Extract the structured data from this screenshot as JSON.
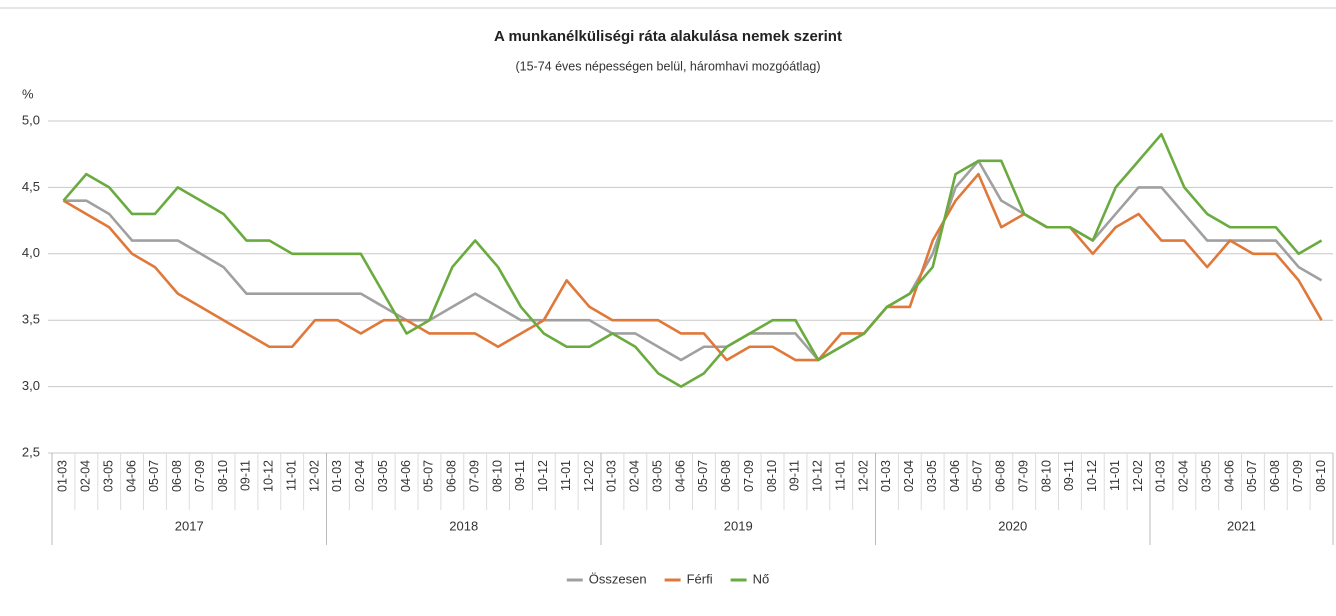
{
  "chart_data": {
    "type": "line",
    "title": "A munkanélküliségi ráta alakulása nemek szerint",
    "subtitle": "(15-74 éves népességen belül, háromhavi mozgóátlag)",
    "y_label": "%",
    "groups": [
      {
        "name": "2017",
        "categories": [
          "01-03",
          "02-04",
          "03-05",
          "04-06",
          "05-07",
          "06-08",
          "07-09",
          "08-10",
          "09-11",
          "10-12",
          "11-01",
          "12-02"
        ]
      },
      {
        "name": "2018",
        "categories": [
          "01-03",
          "02-04",
          "03-05",
          "04-06",
          "05-07",
          "06-08",
          "07-09",
          "08-10",
          "09-11",
          "10-12",
          "11-01",
          "12-02"
        ]
      },
      {
        "name": "2019",
        "categories": [
          "01-03",
          "02-04",
          "03-05",
          "04-06",
          "05-07",
          "06-08",
          "07-09",
          "08-10",
          "09-11",
          "10-12",
          "11-01",
          "12-02"
        ]
      },
      {
        "name": "2020",
        "categories": [
          "01-03",
          "02-04",
          "03-05",
          "04-06",
          "05-07",
          "06-08",
          "07-09",
          "08-10",
          "09-11",
          "10-12",
          "11-01",
          "12-02"
        ]
      },
      {
        "name": "2021",
        "categories": [
          "01-03",
          "02-04",
          "03-05",
          "04-06",
          "05-07",
          "06-08",
          "07-09",
          "08-10"
        ]
      }
    ],
    "series": [
      {
        "name": "Összesen",
        "color": "#a0a0a0",
        "values": [
          4.4,
          4.4,
          4.3,
          4.1,
          4.1,
          4.1,
          4.0,
          3.9,
          3.7,
          3.7,
          3.7,
          3.7,
          3.7,
          3.7,
          3.6,
          3.5,
          3.5,
          3.6,
          3.7,
          3.6,
          3.5,
          3.5,
          3.5,
          3.5,
          3.4,
          3.4,
          3.3,
          3.2,
          3.3,
          3.3,
          3.4,
          3.4,
          3.4,
          3.2,
          3.3,
          3.4,
          3.6,
          3.7,
          4.0,
          4.5,
          4.7,
          4.4,
          4.3,
          4.2,
          4.2,
          4.1,
          4.3,
          4.5,
          4.5,
          4.3,
          4.1,
          4.1,
          4.1,
          4.1,
          3.9,
          3.8
        ]
      },
      {
        "name": "Férfi",
        "color": "#e0783a",
        "values": [
          4.4,
          4.3,
          4.2,
          4.0,
          3.9,
          3.7,
          3.6,
          3.5,
          3.4,
          3.3,
          3.3,
          3.5,
          3.5,
          3.4,
          3.5,
          3.5,
          3.4,
          3.4,
          3.4,
          3.3,
          3.4,
          3.5,
          3.8,
          3.6,
          3.5,
          3.5,
          3.5,
          3.4,
          3.4,
          3.2,
          3.3,
          3.3,
          3.2,
          3.2,
          3.4,
          3.4,
          3.6,
          3.6,
          4.1,
          4.4,
          4.6,
          4.2,
          4.3,
          4.2,
          4.2,
          4.0,
          4.2,
          4.3,
          4.1,
          4.1,
          3.9,
          4.1,
          4.0,
          4.0,
          3.8,
          3.5
        ]
      },
      {
        "name": "Nő",
        "color": "#6aab3f",
        "values": [
          4.4,
          4.6,
          4.5,
          4.3,
          4.3,
          4.5,
          4.4,
          4.3,
          4.1,
          4.1,
          4.0,
          4.0,
          4.0,
          4.0,
          3.7,
          3.4,
          3.5,
          3.9,
          4.1,
          3.9,
          3.6,
          3.4,
          3.3,
          3.3,
          3.4,
          3.3,
          3.1,
          3.0,
          3.1,
          3.3,
          3.4,
          3.5,
          3.5,
          3.2,
          3.3,
          3.4,
          3.6,
          3.7,
          3.9,
          4.6,
          4.7,
          4.7,
          4.3,
          4.2,
          4.2,
          4.1,
          4.5,
          4.7,
          4.9,
          4.5,
          4.3,
          4.2,
          4.2,
          4.2,
          4.0,
          4.1
        ]
      }
    ],
    "ylim": [
      2.5,
      5.0
    ],
    "yticks": [
      {
        "value": 2.5,
        "label": "2,5"
      },
      {
        "value": 3.0,
        "label": "3,0"
      },
      {
        "value": 3.5,
        "label": "3,5"
      },
      {
        "value": 4.0,
        "label": "4,0"
      },
      {
        "value": 4.5,
        "label": "4,5"
      },
      {
        "value": 5.0,
        "label": "5,0"
      }
    ],
    "grid": true,
    "legend": "bottom"
  }
}
